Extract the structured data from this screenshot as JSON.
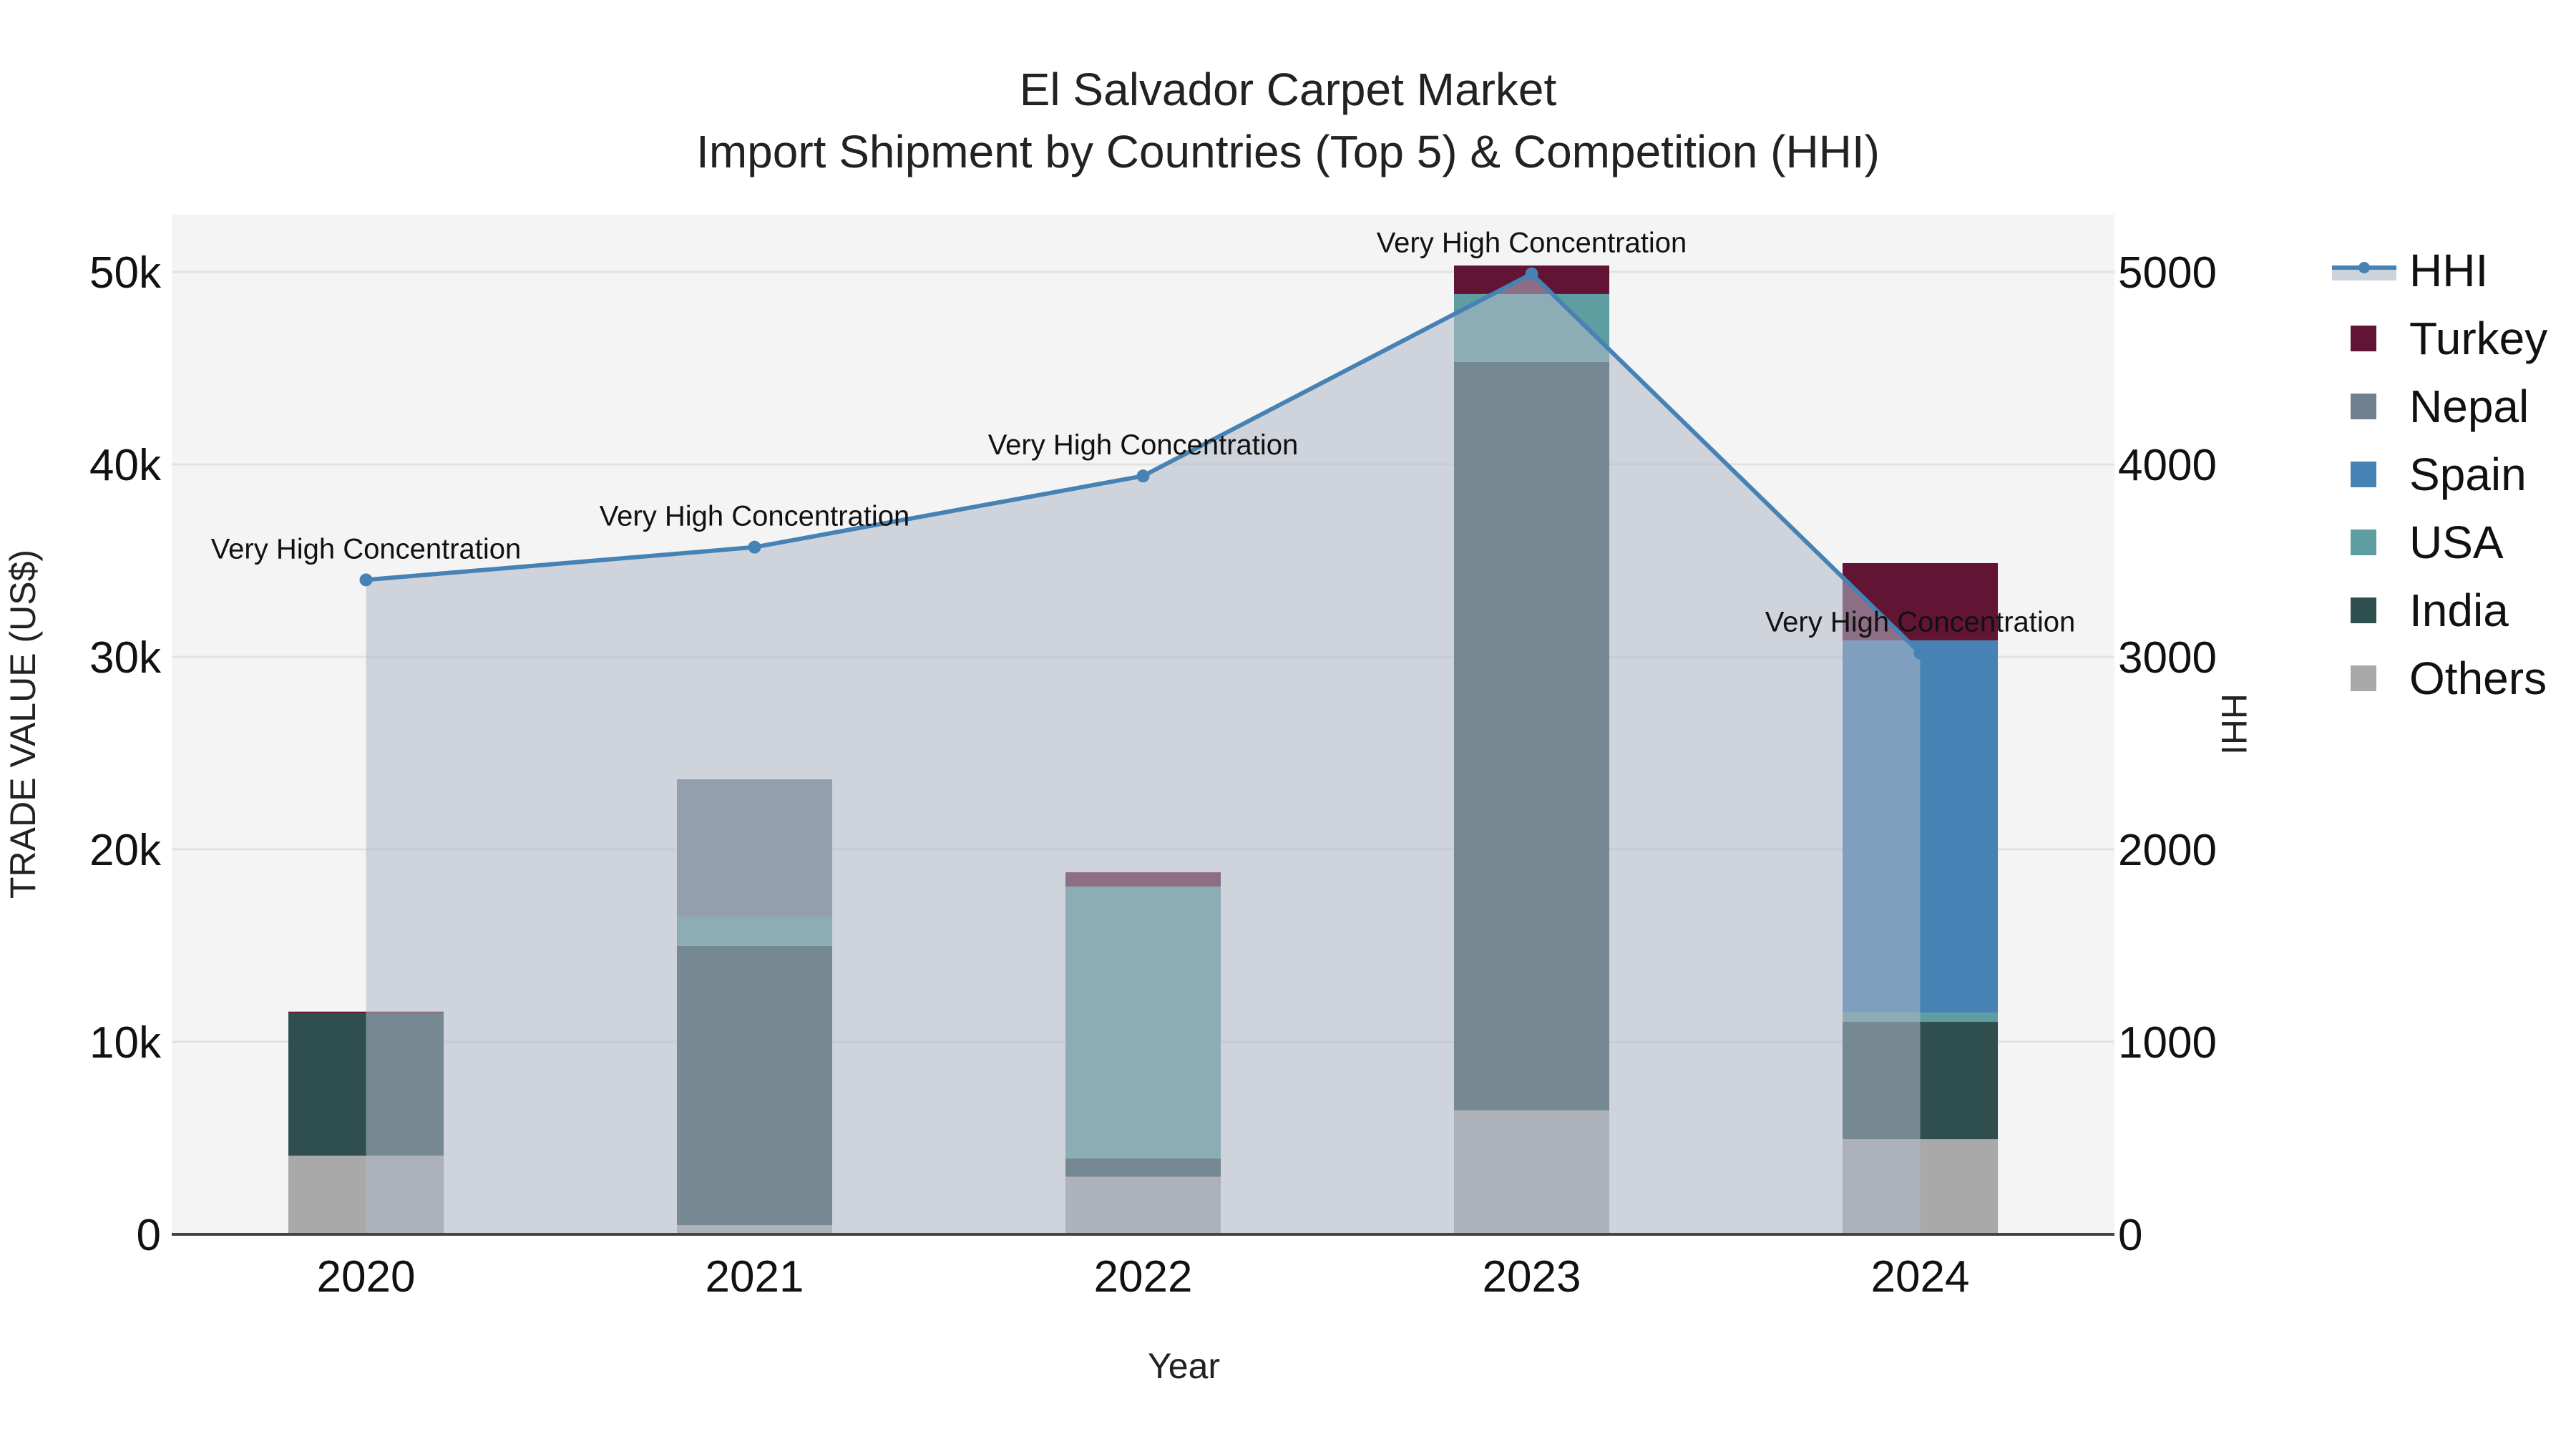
{
  "title": {
    "line1": "El Salvador Carpet Market",
    "line2": "Import Shipment by Countries (Top 5) & Competition (HHI)"
  },
  "axes": {
    "x_title": "Year",
    "y_left_title": "TRADE VALUE (US$)",
    "y_right_title": "HHI",
    "y_left_ticks": [
      "0",
      "10k",
      "20k",
      "30k",
      "40k",
      "50k"
    ],
    "y_right_ticks": [
      "0",
      "1000",
      "2000",
      "3000",
      "4000",
      "5000"
    ],
    "x_ticks": [
      "2020",
      "2021",
      "2022",
      "2023",
      "2024"
    ]
  },
  "legend": [
    {
      "name": "HHI",
      "type": "line"
    },
    {
      "name": "Turkey",
      "type": "bar"
    },
    {
      "name": "Nepal",
      "type": "bar"
    },
    {
      "name": "Spain",
      "type": "bar"
    },
    {
      "name": "USA",
      "type": "bar"
    },
    {
      "name": "India",
      "type": "bar"
    },
    {
      "name": "Others",
      "type": "bar"
    }
  ],
  "colors": {
    "Turkey": "#611434",
    "Nepal": "#708090",
    "Spain": "#4682B4",
    "USA": "#5F9EA0",
    "India": "#2F4F4F",
    "Others": "#A9A9A9",
    "HHI_line": "#4682B4",
    "HHI_fill": "rgba(176,184,200,0.55)",
    "plot_bg": "#F4F4F4",
    "grid": "#E2E2E2"
  },
  "chart_data": {
    "type": "bar",
    "subtype": "stacked bar with secondary-axis line/area",
    "title": "El Salvador Carpet Market — Import Shipment by Countries (Top 5) & Competition (HHI)",
    "xlabel": "Year",
    "ylabel": "TRADE VALUE (US$)",
    "y2label": "HHI",
    "categories": [
      "2020",
      "2021",
      "2022",
      "2023",
      "2024"
    ],
    "ylim": [
      0,
      53000
    ],
    "y2lim": [
      0,
      5300
    ],
    "grid": true,
    "legend_position": "right",
    "stack_order_bottom_to_top": [
      "Others",
      "India",
      "USA",
      "Spain",
      "Nepal",
      "Turkey"
    ],
    "series": [
      {
        "name": "Others",
        "axis": "y",
        "values": [
          4090,
          480,
          2990,
          6440,
          4940
        ]
      },
      {
        "name": "India",
        "axis": "y",
        "values": [
          7400,
          14510,
          950,
          38880,
          6100
        ]
      },
      {
        "name": "USA",
        "axis": "y",
        "values": [
          0,
          1490,
          14130,
          3530,
          480
        ]
      },
      {
        "name": "Spain",
        "axis": "y",
        "values": [
          0,
          0,
          0,
          0,
          19340
        ]
      },
      {
        "name": "Nepal",
        "axis": "y",
        "values": [
          0,
          7160,
          0,
          0,
          0
        ]
      },
      {
        "name": "Turkey",
        "axis": "y",
        "values": [
          80,
          0,
          740,
          1480,
          4010
        ]
      },
      {
        "name": "HHI",
        "axis": "y2",
        "type": "line+area",
        "values": [
          3400,
          3570,
          3940,
          4990,
          3020
        ]
      }
    ],
    "totals": [
      11570,
      23640,
      18810,
      50330,
      34870
    ],
    "annotations": [
      {
        "x": "2020",
        "text": "Very High Concentration"
      },
      {
        "x": "2021",
        "text": "Very High Concentration"
      },
      {
        "x": "2022",
        "text": "Very High Concentration"
      },
      {
        "x": "2023",
        "text": "Very High Concentration"
      },
      {
        "x": "2024",
        "text": "Very High Concentration"
      }
    ]
  }
}
